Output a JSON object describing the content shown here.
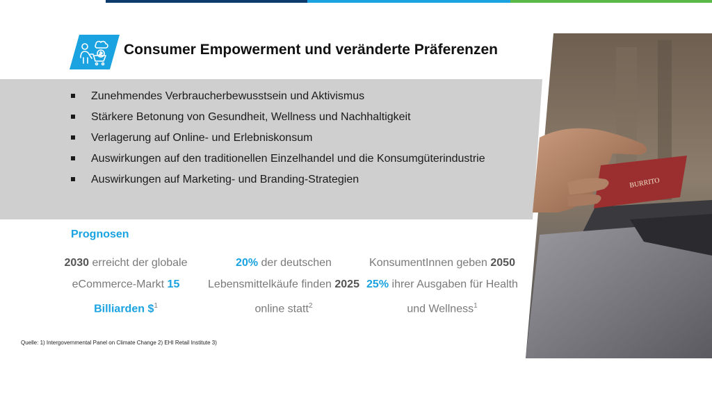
{
  "title": "Consumer Empowerment und veränderte Präferenzen",
  "bullets": [
    "Zunehmendes Verbraucherbewusstsein und Aktivismus",
    "Stärkere Betonung von Gesundheit, Wellness und Nachhaltigkeit",
    "Verlagerung auf Online- und Erlebniskonsum",
    "Auswirkungen auf den traditionellen Einzelhandel und die Konsumgüterindustrie",
    "Auswirkungen auf Marketing- und Branding-Strategien"
  ],
  "forecasts": {
    "title": "Prognosen",
    "col1": {
      "year": "2030",
      "text_a": " erreicht der globale eCommerce-Markt ",
      "value": "15 Billiarden $",
      "sup": "1"
    },
    "col2": {
      "value": "20%",
      "text_a": " der deutschen Lebensmittelkäufe finden ",
      "year": "2025",
      "text_b": " online statt",
      "sup": "2"
    },
    "col3": {
      "text_a": "KonsumentInnen geben ",
      "year": "2050",
      "value": "25%",
      "text_b": " ihrer Ausgaben für Health und Wellness",
      "sup": "1"
    }
  },
  "source": "Quelle: 1) Intergovernmental Panel on Climate Change    2) EHI Retail Institute    3)",
  "photo": {
    "card_text": "BURRITO"
  },
  "colors": {
    "accent_blue": "#1aa3e0",
    "navy": "#0d3b6e",
    "green": "#5bb947",
    "panel_grey": "#cfcfcf"
  }
}
